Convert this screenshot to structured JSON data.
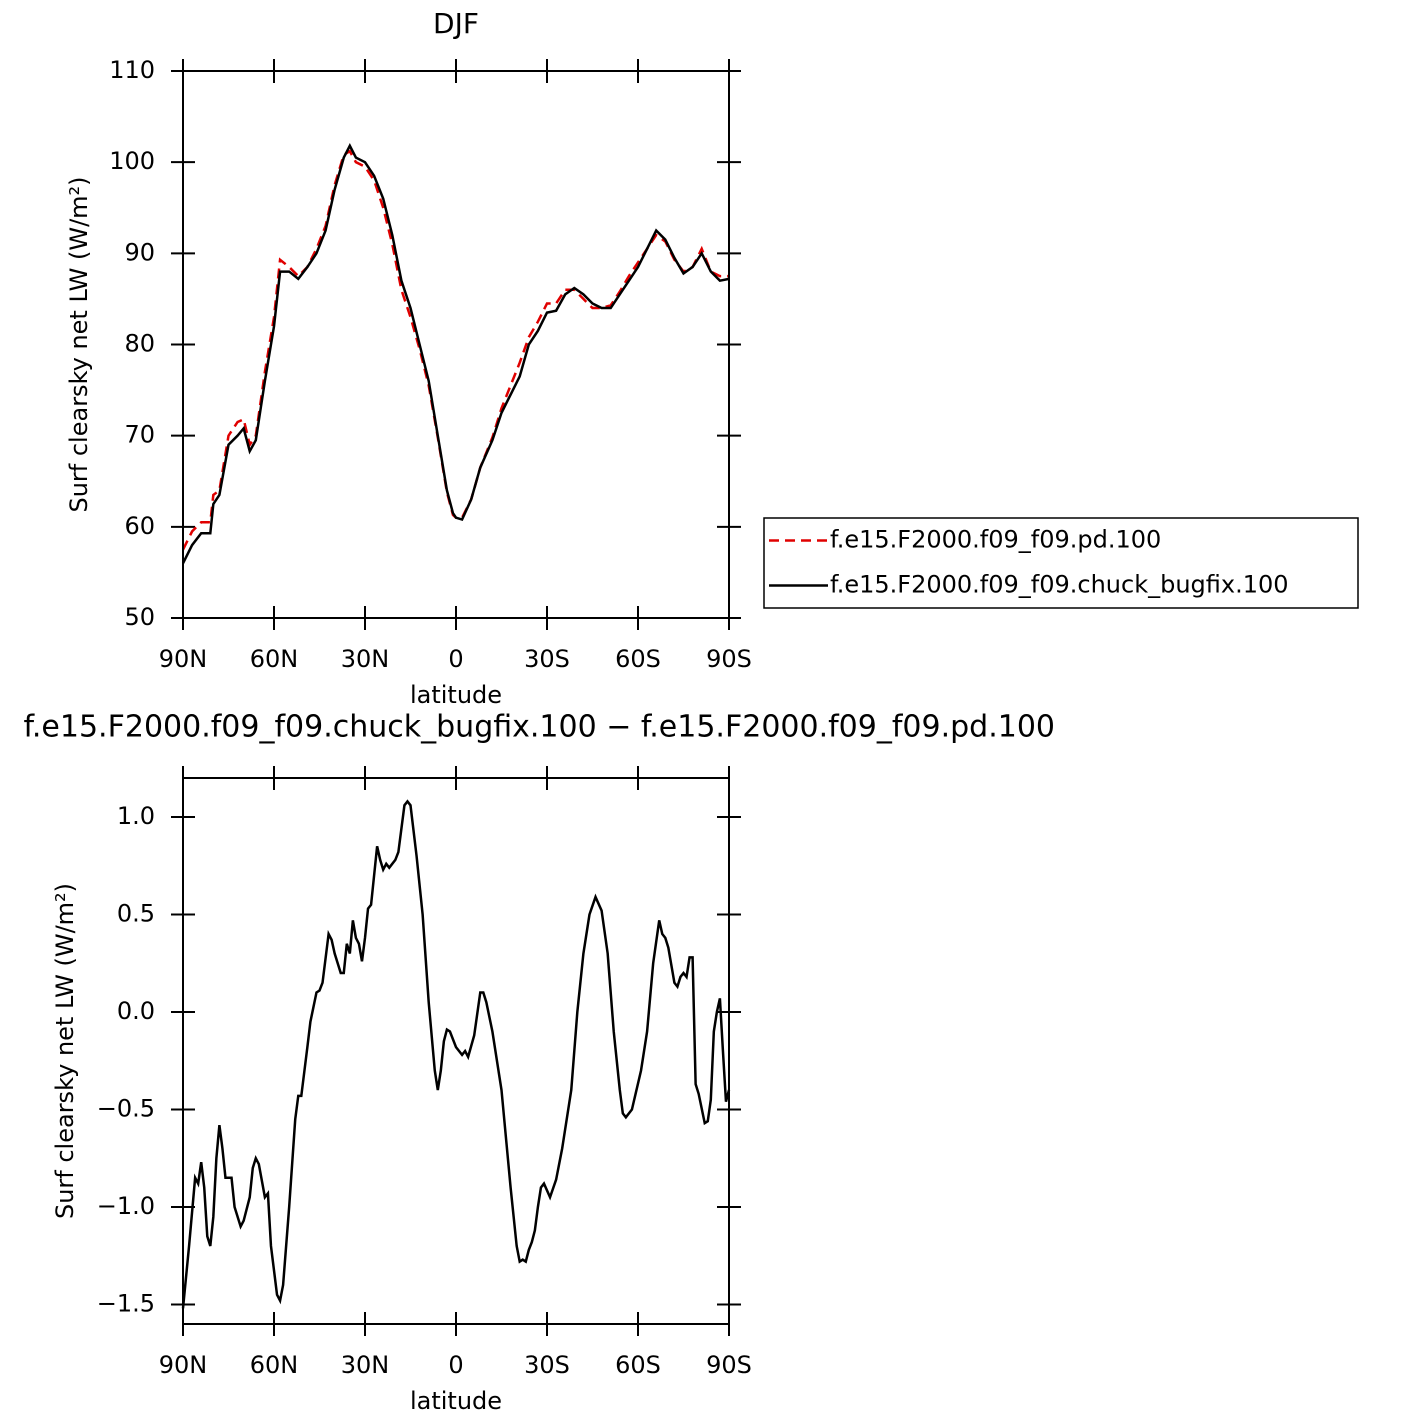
{
  "chart_data": [
    {
      "type": "line",
      "title": "DJF",
      "xlabel": "latitude",
      "ylabel": "Surf clearsky net LW (W/m²)",
      "x": [
        90,
        87,
        84,
        81,
        80,
        78,
        75,
        72,
        70,
        68,
        66,
        63,
        60,
        58,
        55,
        52,
        49,
        46,
        43,
        40,
        37,
        35,
        33,
        30,
        27,
        24,
        21,
        18,
        15,
        12,
        9,
        6,
        3,
        1,
        0,
        -2,
        -5,
        -8,
        -12,
        -15,
        -18,
        -21,
        -24,
        -27,
        -30,
        -33,
        -36,
        -39,
        -42,
        -45,
        -48,
        -51,
        -54,
        -57,
        -60,
        -63,
        -66,
        -69,
        -72,
        -75,
        -78,
        -81,
        -84,
        -87,
        -90
      ],
      "series": [
        {
          "name": "f.e15.F2000.f09_f09.pd.100",
          "color": "#e00000",
          "dash": true,
          "values": [
            57.5,
            59.5,
            60.5,
            60.5,
            63.5,
            64,
            70,
            71.5,
            71.8,
            69,
            70,
            77,
            83,
            89.3,
            88.5,
            87.5,
            88.5,
            90.5,
            93,
            97.5,
            100.8,
            101.2,
            100,
            99.5,
            98,
            95,
            91,
            86,
            83,
            79.5,
            75.5,
            69.8,
            63.8,
            61.3,
            61,
            61,
            63,
            66.5,
            69.8,
            73,
            75.5,
            78,
            80.8,
            82.5,
            84.5,
            84.5,
            86,
            86,
            85,
            84,
            84,
            84.3,
            85.8,
            87.5,
            89,
            90.5,
            92,
            91.3,
            89.3,
            88,
            88.5,
            90.5,
            88,
            87.5,
            87.5
          ]
        },
        {
          "name": "f.e15.F2000.f09_f09.chuck_bugfix.100",
          "color": "#000000",
          "dash": false,
          "values": [
            56,
            58,
            59.3,
            59.3,
            62.5,
            63.5,
            69,
            70,
            70.8,
            68.3,
            69.5,
            76,
            82,
            88,
            88,
            87.2,
            88.5,
            90,
            92.5,
            97,
            100.5,
            101.8,
            100.5,
            100,
            98.5,
            96,
            92,
            87,
            84,
            80,
            76,
            70,
            64,
            61.5,
            61,
            60.8,
            63,
            66.5,
            69.5,
            72.5,
            74.5,
            76.5,
            80,
            81.5,
            83.5,
            83.7,
            85.5,
            86.2,
            85.5,
            84.5,
            84,
            84,
            85.5,
            87,
            88.5,
            90.5,
            92.5,
            91.5,
            89.5,
            87.8,
            88.5,
            90,
            88,
            87,
            87.2
          ]
        }
      ],
      "xlim": [
        90,
        -90
      ],
      "xticks": [
        {
          "value": 90,
          "label": "90N"
        },
        {
          "value": 60,
          "label": "60N"
        },
        {
          "value": 30,
          "label": "30N"
        },
        0,
        {
          "value": -30,
          "label": "30S"
        },
        {
          "value": -60,
          "label": "60S"
        },
        {
          "value": -90,
          "label": "90S"
        }
      ],
      "ylim": [
        50,
        110
      ],
      "yticks": [
        50,
        60,
        70,
        80,
        90,
        100,
        110
      ],
      "legend": "right"
    },
    {
      "type": "line",
      "title": "f.e15.F2000.f09_f09.chuck_bugfix.100 − f.e15.F2000.f09_f09.pd.100",
      "xlabel": "latitude",
      "ylabel": "Surf clearsky net LW (W/m²)",
      "x": [
        90,
        88,
        86,
        85,
        84,
        83,
        82,
        81,
        80,
        79,
        78,
        77,
        76,
        74,
        73,
        71,
        70,
        68,
        67,
        66,
        65,
        63,
        62,
        61,
        59,
        58,
        57,
        55,
        53,
        52,
        51,
        49,
        48,
        46,
        45,
        44,
        42,
        41,
        40,
        38,
        37,
        36,
        35,
        34,
        33,
        32,
        31,
        30,
        29,
        28,
        27,
        26,
        25,
        24,
        23,
        22,
        20,
        19,
        17,
        16,
        15,
        13,
        11,
        9,
        7,
        6,
        5,
        4,
        3,
        2,
        0,
        -2,
        -3,
        -4,
        -6,
        -8,
        -9,
        -10,
        -12,
        -15,
        -18,
        -20,
        -21,
        -22,
        -23,
        -24,
        -25,
        -26,
        -27,
        -28,
        -29,
        -31,
        -33,
        -35,
        -38,
        -40,
        -42,
        -44,
        -46,
        -48,
        -50,
        -52,
        -54,
        -55,
        -56,
        -58,
        -61,
        -63,
        -65,
        -67,
        -68,
        -69,
        -70,
        -72,
        -73,
        -74,
        -75,
        -76,
        -77,
        -78,
        -79,
        -80,
        -82,
        -83,
        -84,
        -85,
        -86,
        -87,
        -88,
        -89,
        -90
      ],
      "values": [
        -1.52,
        -1.2,
        -0.85,
        -0.88,
        -0.77,
        -0.9,
        -1.15,
        -1.2,
        -1.05,
        -0.75,
        -0.58,
        -0.7,
        -0.85,
        -0.85,
        -1.0,
        -1.1,
        -1.07,
        -0.95,
        -0.8,
        -0.75,
        -0.78,
        -0.95,
        -0.93,
        -1.2,
        -1.45,
        -1.48,
        -1.4,
        -1.0,
        -0.55,
        -0.43,
        -0.43,
        -0.18,
        -0.05,
        0.1,
        0.11,
        0.15,
        0.4,
        0.37,
        0.3,
        0.2,
        0.2,
        0.35,
        0.3,
        0.47,
        0.38,
        0.35,
        0.26,
        0.38,
        0.53,
        0.55,
        0.7,
        0.85,
        0.78,
        0.73,
        0.76,
        0.74,
        0.78,
        0.82,
        1.06,
        1.08,
        1.06,
        0.8,
        0.5,
        0.05,
        -0.3,
        -0.4,
        -0.3,
        -0.15,
        -0.09,
        -0.1,
        -0.18,
        -0.22,
        -0.2,
        -0.23,
        -0.12,
        0.1,
        0.1,
        0.05,
        -0.1,
        -0.4,
        -0.9,
        -1.2,
        -1.28,
        -1.27,
        -1.28,
        -1.22,
        -1.18,
        -1.12,
        -1.0,
        -0.9,
        -0.88,
        -0.95,
        -0.86,
        -0.7,
        -0.4,
        0.0,
        0.3,
        0.5,
        0.59,
        0.52,
        0.3,
        -0.1,
        -0.4,
        -0.52,
        -0.54,
        -0.5,
        -0.3,
        -0.1,
        0.25,
        0.47,
        0.4,
        0.38,
        0.33,
        0.15,
        0.13,
        0.18,
        0.2,
        0.18,
        0.28,
        0.28,
        -0.37,
        -0.42,
        -0.57,
        -0.56,
        -0.45,
        -0.1,
        0.0,
        0.07,
        -0.2,
        -0.46,
        -0.4
      ],
      "color": "#000000",
      "xlim": [
        90,
        -90
      ],
      "xticks": [
        {
          "value": 90,
          "label": "90N"
        },
        {
          "value": 60,
          "label": "60N"
        },
        {
          "value": 30,
          "label": "30N"
        },
        0,
        {
          "value": -30,
          "label": "30S"
        },
        {
          "value": -60,
          "label": "60S"
        },
        {
          "value": -90,
          "label": "90S"
        }
      ],
      "ylim": [
        -1.6,
        1.2
      ],
      "yticks": [
        {
          "value": -1.5,
          "label": "−1.5"
        },
        {
          "value": -1,
          "label": "−1.0"
        },
        {
          "value": -0.5,
          "label": "−0.5"
        },
        {
          "value": 0,
          "label": "0.0"
        },
        0.5,
        {
          "value": 1,
          "label": "1.0"
        }
      ]
    }
  ]
}
